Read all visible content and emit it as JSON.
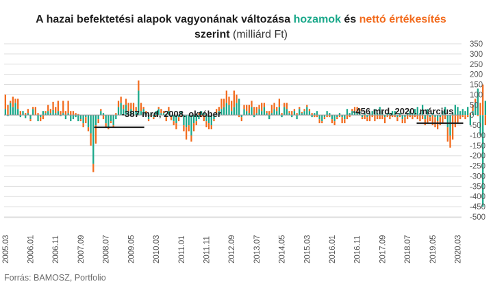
{
  "chart_data": {
    "type": "bar",
    "stacked": true,
    "title_parts": [
      {
        "text": "A hazai befektetési alapok vagyonának változása ",
        "role": "text"
      },
      {
        "text": "hozamok",
        "role": "series0"
      },
      {
        "text": " és ",
        "role": "text"
      },
      {
        "text": "nettó értékesítés",
        "role": "series1"
      }
    ],
    "title_line2_bold": "szerint",
    "title_line2_rest": " (milliárd Ft)",
    "colors": {
      "hozamok": "#1aa88a",
      "netto": "#f26b1d",
      "text": "#1f1f1f",
      "grid": "#dddddd",
      "axis": "#9a9a9a"
    },
    "series_names": [
      "hozamok",
      "nettó értékesítés"
    ],
    "ylim": [
      -500,
      350
    ],
    "yticks": [
      350,
      300,
      250,
      200,
      150,
      100,
      50,
      0,
      -50,
      -100,
      -150,
      -200,
      -250,
      -300,
      -350,
      -400,
      -450,
      -500
    ],
    "x_start": "2005.03",
    "x_end": "2020.04",
    "x_ticks": [
      "2005.03",
      "2006.01",
      "2006.11",
      "2007.09",
      "2008.07",
      "2009.05",
      "2010.03",
      "2011.01",
      "2011.11",
      "2012.09",
      "2013.07",
      "2014.05",
      "2015.03",
      "2016.01",
      "2016.11",
      "2017.09",
      "2018.07",
      "2019.05",
      "2020.03"
    ],
    "hozamok": [
      30,
      -5,
      60,
      40,
      60,
      30,
      -10,
      20,
      -15,
      10,
      -20,
      30,
      0,
      -30,
      -10,
      20,
      10,
      20,
      10,
      25,
      10,
      20,
      -5,
      10,
      -20,
      10,
      -30,
      -20,
      -10,
      -30,
      -20,
      -40,
      -10,
      -60,
      -90,
      -240,
      -50,
      -20,
      20,
      10,
      -40,
      -60,
      -30,
      -50,
      -20,
      40,
      60,
      30,
      50,
      20,
      30,
      20,
      20,
      120,
      20,
      30,
      10,
      -20,
      10,
      -10,
      20,
      30,
      10,
      10,
      -10,
      20,
      -5,
      -30,
      -40,
      -10,
      20,
      -50,
      -60,
      -50,
      -100,
      -40,
      -30,
      -20,
      20,
      10,
      -30,
      -40,
      -50,
      -20,
      10,
      20,
      30,
      40,
      60,
      50,
      20,
      40,
      60,
      80,
      -10,
      30,
      20,
      10,
      40,
      -10,
      10,
      30,
      20,
      40,
      10,
      -20,
      10,
      30,
      20,
      40,
      -10,
      40,
      30,
      10,
      -10,
      20,
      -20,
      30,
      10,
      20,
      40,
      20,
      -10,
      10,
      20,
      -20,
      -30,
      -10,
      20,
      10,
      -20,
      -30,
      -10,
      10,
      -10,
      -20,
      30,
      10,
      20,
      20,
      10,
      20,
      -10,
      10,
      -10,
      10,
      20,
      30,
      10,
      40,
      20,
      -10,
      10,
      10,
      20,
      20,
      -10,
      10,
      -20,
      -10,
      10,
      20,
      10,
      30,
      40,
      10,
      50,
      -20,
      30,
      -10,
      10,
      -10,
      -30,
      -10,
      20,
      40,
      -60,
      -100,
      10,
      50,
      40,
      20,
      30,
      20,
      40,
      -50,
      20,
      60,
      130,
      -100,
      -450,
      70
    ],
    "netto": [
      70,
      50,
      10,
      50,
      20,
      50,
      20,
      0,
      10,
      20,
      -10,
      10,
      40,
      10,
      -20,
      -20,
      10,
      30,
      20,
      40,
      30,
      50,
      20,
      60,
      20,
      60,
      20,
      20,
      10,
      5,
      -10,
      -20,
      -30,
      -20,
      -60,
      -40,
      -90,
      -20,
      10,
      -20,
      -20,
      -10,
      -10,
      -10,
      10,
      30,
      30,
      20,
      30,
      40,
      30,
      40,
      20,
      50,
      40,
      10,
      10,
      -10,
      -10,
      -10,
      -5,
      10,
      20,
      10,
      -20,
      20,
      -20,
      -20,
      -30,
      -20,
      -10,
      -30,
      -60,
      -30,
      -30,
      -40,
      -20,
      10,
      -10,
      -30,
      -30,
      -30,
      -20,
      -10,
      20,
      20,
      50,
      40,
      60,
      40,
      50,
      80,
      40,
      -10,
      -20,
      20,
      30,
      40,
      30,
      40,
      30,
      20,
      40,
      20,
      10,
      20,
      40,
      30,
      20,
      40,
      10,
      20,
      30,
      10,
      20,
      10,
      10,
      10,
      5,
      10,
      10,
      10,
      10,
      -10,
      -10,
      -20,
      -10,
      -10,
      -10,
      -10,
      -20,
      -20,
      -10,
      -10,
      -30,
      -20,
      -20,
      -10,
      10,
      20,
      30,
      10,
      -10,
      -20,
      -20,
      -30,
      -10,
      -30,
      -20,
      -20,
      -20,
      -30,
      -10,
      -20,
      -10,
      -10,
      -20,
      -10,
      -20,
      -30,
      -20,
      -10,
      -20,
      -10,
      -20,
      -30,
      -20,
      -30,
      -40,
      -20,
      -50,
      -50,
      -40,
      -40,
      -40,
      -20,
      -70,
      -60,
      -120,
      -60,
      -40,
      -20,
      -10,
      -20,
      -10,
      10,
      30,
      20,
      -5,
      60,
      150,
      -50,
      -10,
      -20
    ],
    "annotations": [
      {
        "text": "-387 mrd, 2008. október",
        "series_index": 43
      },
      {
        "text": "-456 mrd, 2020. március",
        "series_index": 180
      }
    ],
    "source": "Forrás: BAMOSZ, Portfolio"
  }
}
